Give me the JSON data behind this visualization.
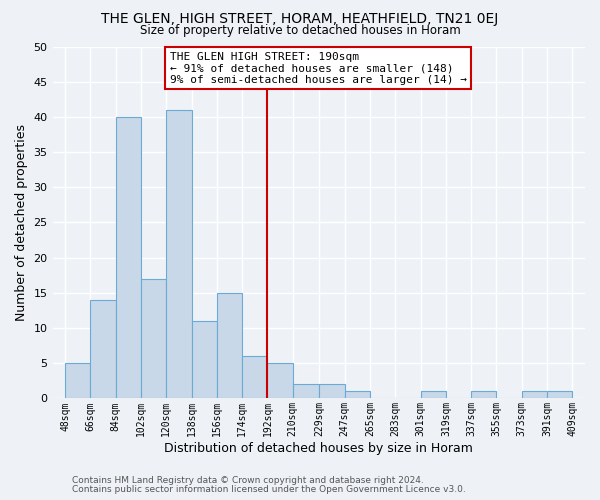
{
  "title": "THE GLEN, HIGH STREET, HORAM, HEATHFIELD, TN21 0EJ",
  "subtitle": "Size of property relative to detached houses in Horam",
  "xlabel": "Distribution of detached houses by size in Horam",
  "ylabel": "Number of detached properties",
  "bin_edges": [
    48,
    66,
    84,
    102,
    120,
    138,
    156,
    174,
    192,
    210,
    229,
    247,
    265,
    283,
    301,
    319,
    337,
    355,
    373,
    391,
    409
  ],
  "bin_labels": [
    "48sqm",
    "66sqm",
    "84sqm",
    "102sqm",
    "120sqm",
    "138sqm",
    "156sqm",
    "174sqm",
    "192sqm",
    "210sqm",
    "229sqm",
    "247sqm",
    "265sqm",
    "283sqm",
    "301sqm",
    "319sqm",
    "337sqm",
    "355sqm",
    "373sqm",
    "391sqm",
    "409sqm"
  ],
  "counts": [
    5,
    14,
    40,
    17,
    41,
    11,
    15,
    6,
    5,
    2,
    2,
    1,
    0,
    0,
    1,
    0,
    1,
    0,
    1,
    1
  ],
  "bar_color": "#c8d8e8",
  "bar_edgecolor": "#6aaad4",
  "vline_x": 192,
  "vline_color": "#cc0000",
  "annotation_line1": "THE GLEN HIGH STREET: 190sqm",
  "annotation_line2": "← 91% of detached houses are smaller (148)",
  "annotation_line3": "9% of semi-detached houses are larger (14) →",
  "ylim": [
    0,
    50
  ],
  "yticks": [
    0,
    5,
    10,
    15,
    20,
    25,
    30,
    35,
    40,
    45,
    50
  ],
  "bg_color": "#eef2f7",
  "grid_color": "#ffffff",
  "footer1": "Contains HM Land Registry data © Crown copyright and database right 2024.",
  "footer2": "Contains public sector information licensed under the Open Government Licence v3.0."
}
